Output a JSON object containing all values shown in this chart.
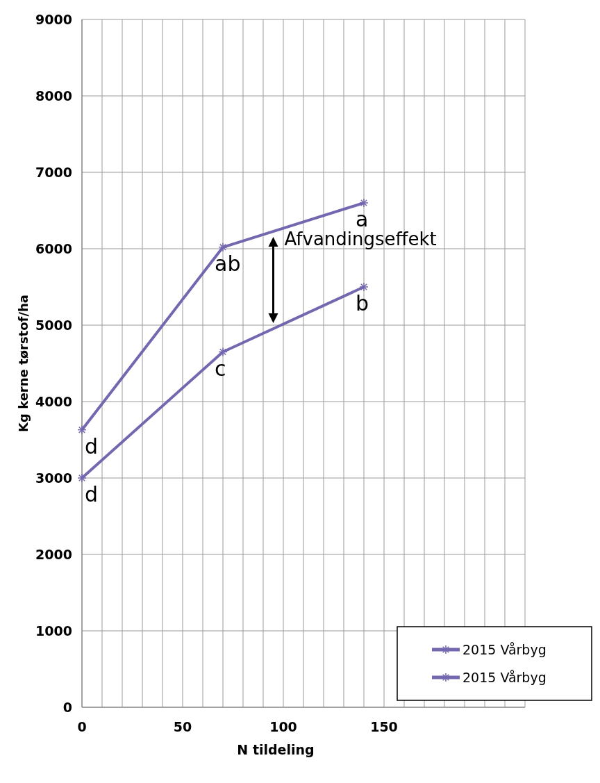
{
  "chart_data": {
    "type": "line",
    "xlabel": "N tildeling",
    "ylabel": "Kg kerne tørstof/ha",
    "xlim": [
      0,
      220
    ],
    "ylim": [
      0,
      9000
    ],
    "xticks": [
      0,
      {
        "value": 10,
        "label": null
      },
      {
        "value": 20,
        "label": null
      },
      {
        "value": 30,
        "label": null
      },
      {
        "value": 40,
        "label": null
      },
      50,
      {
        "value": 60,
        "label": null
      },
      {
        "value": 70,
        "label": null
      },
      {
        "value": 80,
        "label": null
      },
      {
        "value": 90,
        "label": null
      },
      100,
      {
        "value": 110,
        "label": null
      },
      {
        "value": 120,
        "label": null
      },
      {
        "value": 130,
        "label": null
      },
      {
        "value": 140,
        "label": null
      },
      150,
      {
        "value": 160,
        "label": null
      },
      {
        "value": 170,
        "label": null
      },
      {
        "value": 180,
        "label": null
      },
      {
        "value": 190,
        "label": null
      },
      {
        "value": 200,
        "label": null
      },
      {
        "value": 210,
        "label": null
      },
      {
        "value": 220,
        "label": null
      }
    ],
    "yticks": [
      0,
      1000,
      2000,
      3000,
      4000,
      5000,
      6000,
      7000,
      8000,
      9000
    ],
    "grid": true,
    "legend": "bottom right",
    "marker": "cross",
    "line_style": "solid",
    "series": [
      {
        "name": "2015 Vårbyg",
        "color": "#7467b0",
        "x": [
          0,
          70,
          140
        ],
        "values": [
          3630,
          6020,
          6600
        ]
      },
      {
        "name": "2015 Vårbyg",
        "color": "#7467b0",
        "x": [
          0,
          70,
          140
        ],
        "values": [
          3000,
          4650,
          5500
        ]
      }
    ],
    "annotations": [
      {
        "text": "d",
        "x": 0,
        "y": 3630
      },
      {
        "text": "d",
        "x": 0,
        "y": 3000
      },
      {
        "text": "ab",
        "x": 70,
        "y": 6020
      },
      {
        "text": "c",
        "x": 70,
        "y": 4650
      },
      {
        "text": "a",
        "x": 140,
        "y": 6600
      },
      {
        "text": "b",
        "x": 140,
        "y": 5500
      },
      "Afvandingseffekt"
    ]
  }
}
